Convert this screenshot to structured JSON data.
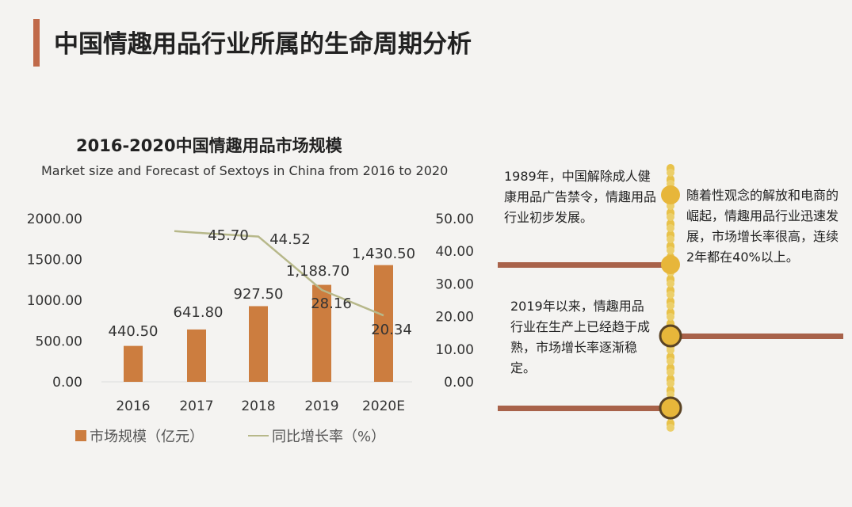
{
  "page": {
    "title": "中国情趣用品行业所属的生命周期分析"
  },
  "colors": {
    "accent": "#c06a4a",
    "bar": "#cc7d3f",
    "line": "#b7b88a",
    "timeline_bar": "#a8624a",
    "timeline_dot": "#e8c24a"
  },
  "chart_data": {
    "type": "bar",
    "title": "2016-2020中国情趣用品市场规模",
    "subtitle": "Market size and Forecast of Sextoys in China from 2016 to 2020",
    "categories": [
      "2016",
      "2017",
      "2018",
      "2019",
      "2020E"
    ],
    "series": [
      {
        "name": "市场规模（亿元）",
        "type": "bar",
        "axis": "left",
        "values": [
          440.5,
          641.8,
          927.5,
          1188.7,
          1430.5
        ],
        "labels": [
          "440.50",
          "641.80",
          "927.50",
          "1,188.70",
          "1,430.50"
        ]
      },
      {
        "name": "同比增长率（%）",
        "type": "line",
        "axis": "right",
        "values": [
          null,
          45.7,
          44.52,
          28.16,
          20.34
        ],
        "labels": [
          "",
          "45.70",
          "44.52",
          "28.16",
          "20.34"
        ]
      }
    ],
    "y_left": {
      "range": [
        0,
        2000
      ],
      "ticks": [
        "0.00",
        "500.00",
        "1000.00",
        "1500.00",
        "2000.00"
      ]
    },
    "y_right": {
      "range": [
        0,
        50
      ],
      "ticks": [
        "0.00",
        "10.00",
        "20.00",
        "30.00",
        "40.00",
        "50.00"
      ]
    },
    "grid": false,
    "legend_position": "bottom-left",
    "legend": {
      "bar_label": "市场规模（亿元）",
      "line_label": "同比增长率（%）"
    }
  },
  "timeline": {
    "notes": [
      "1989年，中国解除成人健康用品广告禁令，情趣用品行业初步发展。",
      "随着性观念的解放和电商的崛起，情趣用品行业迅速发展，市场增长率很高，连续2年都在40%以上。",
      "2019年以来，情趣用品行业在生产上已经趋于成熟，市场增长率逐渐稳定。"
    ]
  }
}
